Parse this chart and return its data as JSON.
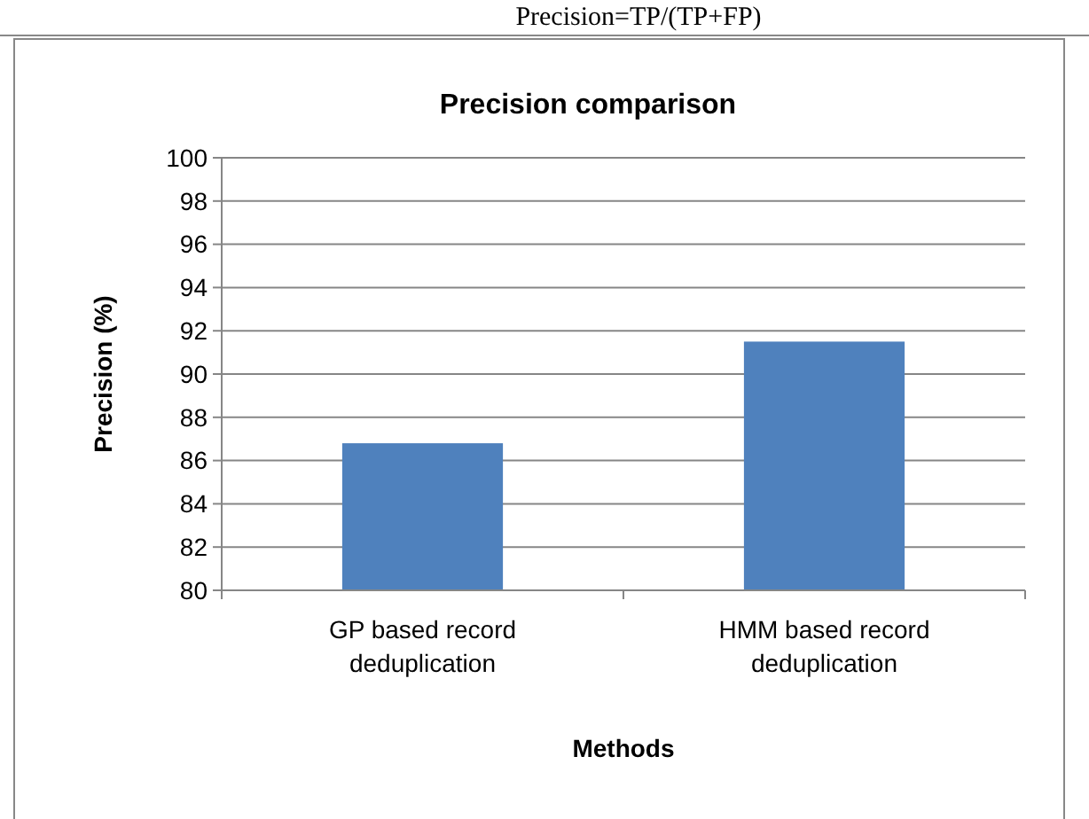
{
  "chart_data": {
    "type": "bar",
    "title": "Precision comparison",
    "xlabel": "Methods",
    "ylabel": "Precision (%)",
    "categories": [
      "GP based record deduplication",
      "HMM based record deduplication"
    ],
    "values": [
      86.8,
      91.5
    ],
    "color": "#4f81bd",
    "ylim": [
      80,
      100
    ],
    "yticks": [
      80,
      82,
      84,
      86,
      88,
      90,
      92,
      94,
      96,
      98,
      100
    ],
    "grid": "y",
    "annotations": [
      "Precision=TP/(TP+FP)"
    ]
  }
}
